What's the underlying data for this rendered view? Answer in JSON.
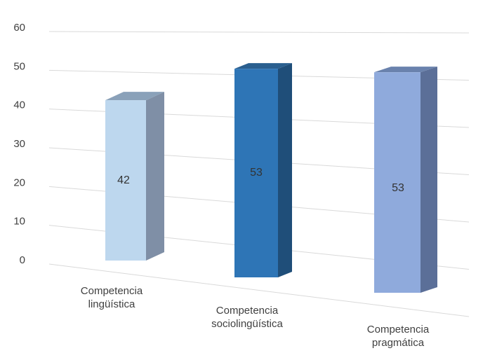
{
  "chart_data": {
    "type": "bar",
    "title": "",
    "xlabel": "",
    "ylabel": "",
    "ylim": [
      0,
      60
    ],
    "y_ticks": [
      0,
      10,
      20,
      30,
      40,
      50,
      60
    ],
    "grid": true,
    "legend": "none",
    "style": "3d-perspective",
    "categories": [
      [
        "Competencia",
        "lingüística"
      ],
      [
        "Competencia",
        "sociolingüística"
      ],
      [
        "Competencia",
        "pragmática"
      ]
    ],
    "values": [
      42,
      53,
      53
    ],
    "data_labels": [
      "42",
      "53",
      "53"
    ],
    "colors": [
      {
        "front": "#bdd7ee",
        "side": "#7f8fa6",
        "top": "#8aa1b9"
      },
      {
        "front": "#2e75b6",
        "side": "#1f4e79",
        "top": "#2a5f8f"
      },
      {
        "front": "#8faadc",
        "side": "#5b6f98",
        "top": "#6a82ad"
      }
    ]
  }
}
